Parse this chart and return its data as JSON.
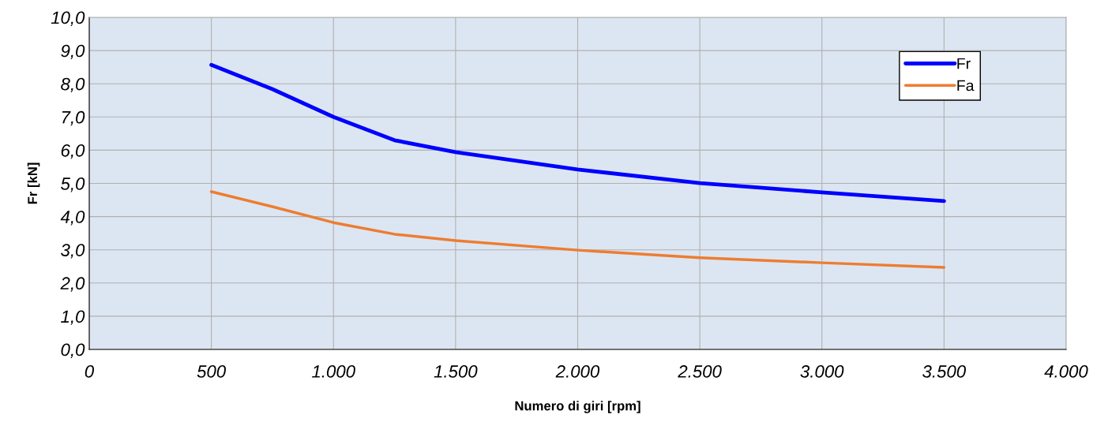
{
  "chart_data": {
    "type": "line",
    "xlabel": "Numero di giri [rpm]",
    "ylabel": "Fr [kN]",
    "x": [
      500,
      750,
      1000,
      1250,
      1500,
      2000,
      2500,
      3000,
      3500
    ],
    "series": [
      {
        "name": "Fr",
        "color": "#0000ff",
        "values": [
          8.57,
          7.84,
          7.0,
          6.3,
          5.94,
          5.42,
          5.01,
          4.73,
          4.47
        ]
      },
      {
        "name": "Fa",
        "color": "#ed7d31",
        "values": [
          4.75,
          4.3,
          3.82,
          3.47,
          3.28,
          2.99,
          2.76,
          2.61,
          2.47
        ]
      }
    ],
    "xlim": [
      0,
      4000
    ],
    "ylim": [
      0,
      10
    ],
    "xticks": [
      0,
      500,
      {
        "value": 1000,
        "label": "1.000"
      },
      {
        "value": 1500,
        "label": "1.500"
      },
      {
        "value": 2000,
        "label": "2.000"
      },
      {
        "value": 2500,
        "label": "2.500"
      },
      {
        "value": 3000,
        "label": "3.000"
      },
      {
        "value": 3500,
        "label": "3.500"
      },
      {
        "value": 4000,
        "label": "4.000"
      }
    ],
    "yticks": [
      {
        "value": 0,
        "label": "0,0"
      },
      {
        "value": 1,
        "label": "1,0"
      },
      {
        "value": 2,
        "label": "2,0"
      },
      {
        "value": 3,
        "label": "3,0"
      },
      {
        "value": 4,
        "label": "4,0"
      },
      {
        "value": 5,
        "label": "5,0"
      },
      {
        "value": 6,
        "label": "6,0"
      },
      {
        "value": 7,
        "label": "7,0"
      },
      {
        "value": 8,
        "label": "8,0"
      },
      {
        "value": 9,
        "label": "9,0"
      },
      {
        "value": 10,
        "label": "10,0"
      }
    ],
    "grid": true,
    "legend": "top right",
    "marker": "none",
    "line_style": "solid"
  }
}
